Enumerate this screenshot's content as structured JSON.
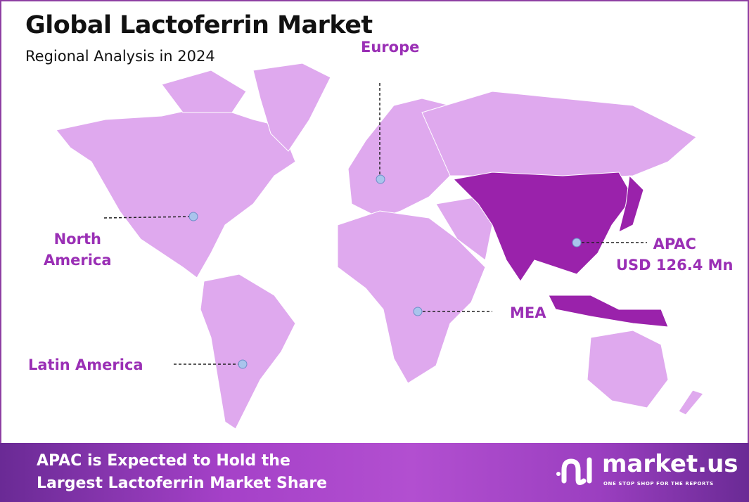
{
  "header": {
    "title": "Global Lactoferrin Market",
    "subtitle": "Regional Analysis in 2024"
  },
  "regions": [
    {
      "name": "North America",
      "line1": "North",
      "line2": "America",
      "highlighted": false
    },
    {
      "name": "Europe",
      "line1": "Europe",
      "highlighted": false
    },
    {
      "name": "APAC",
      "line1": "APAC",
      "line2": "USD 126.4 Mn",
      "highlighted": true
    },
    {
      "name": "MEA",
      "line1": "MEA",
      "highlighted": false
    },
    {
      "name": "Latin America",
      "line1": "Latin America",
      "highlighted": false
    }
  ],
  "colors": {
    "land": "#dfa9ee",
    "highlight": "#9a22ab",
    "label": "#9a2fb5",
    "marker": "#a9c4ec"
  },
  "footer": {
    "line1": "APAC is Expected to Hold the",
    "line2": "Largest Lactoferrin Market Share"
  },
  "logo": {
    "name": "market.us",
    "tagline": "ONE STOP SHOP FOR THE REPORTS"
  }
}
